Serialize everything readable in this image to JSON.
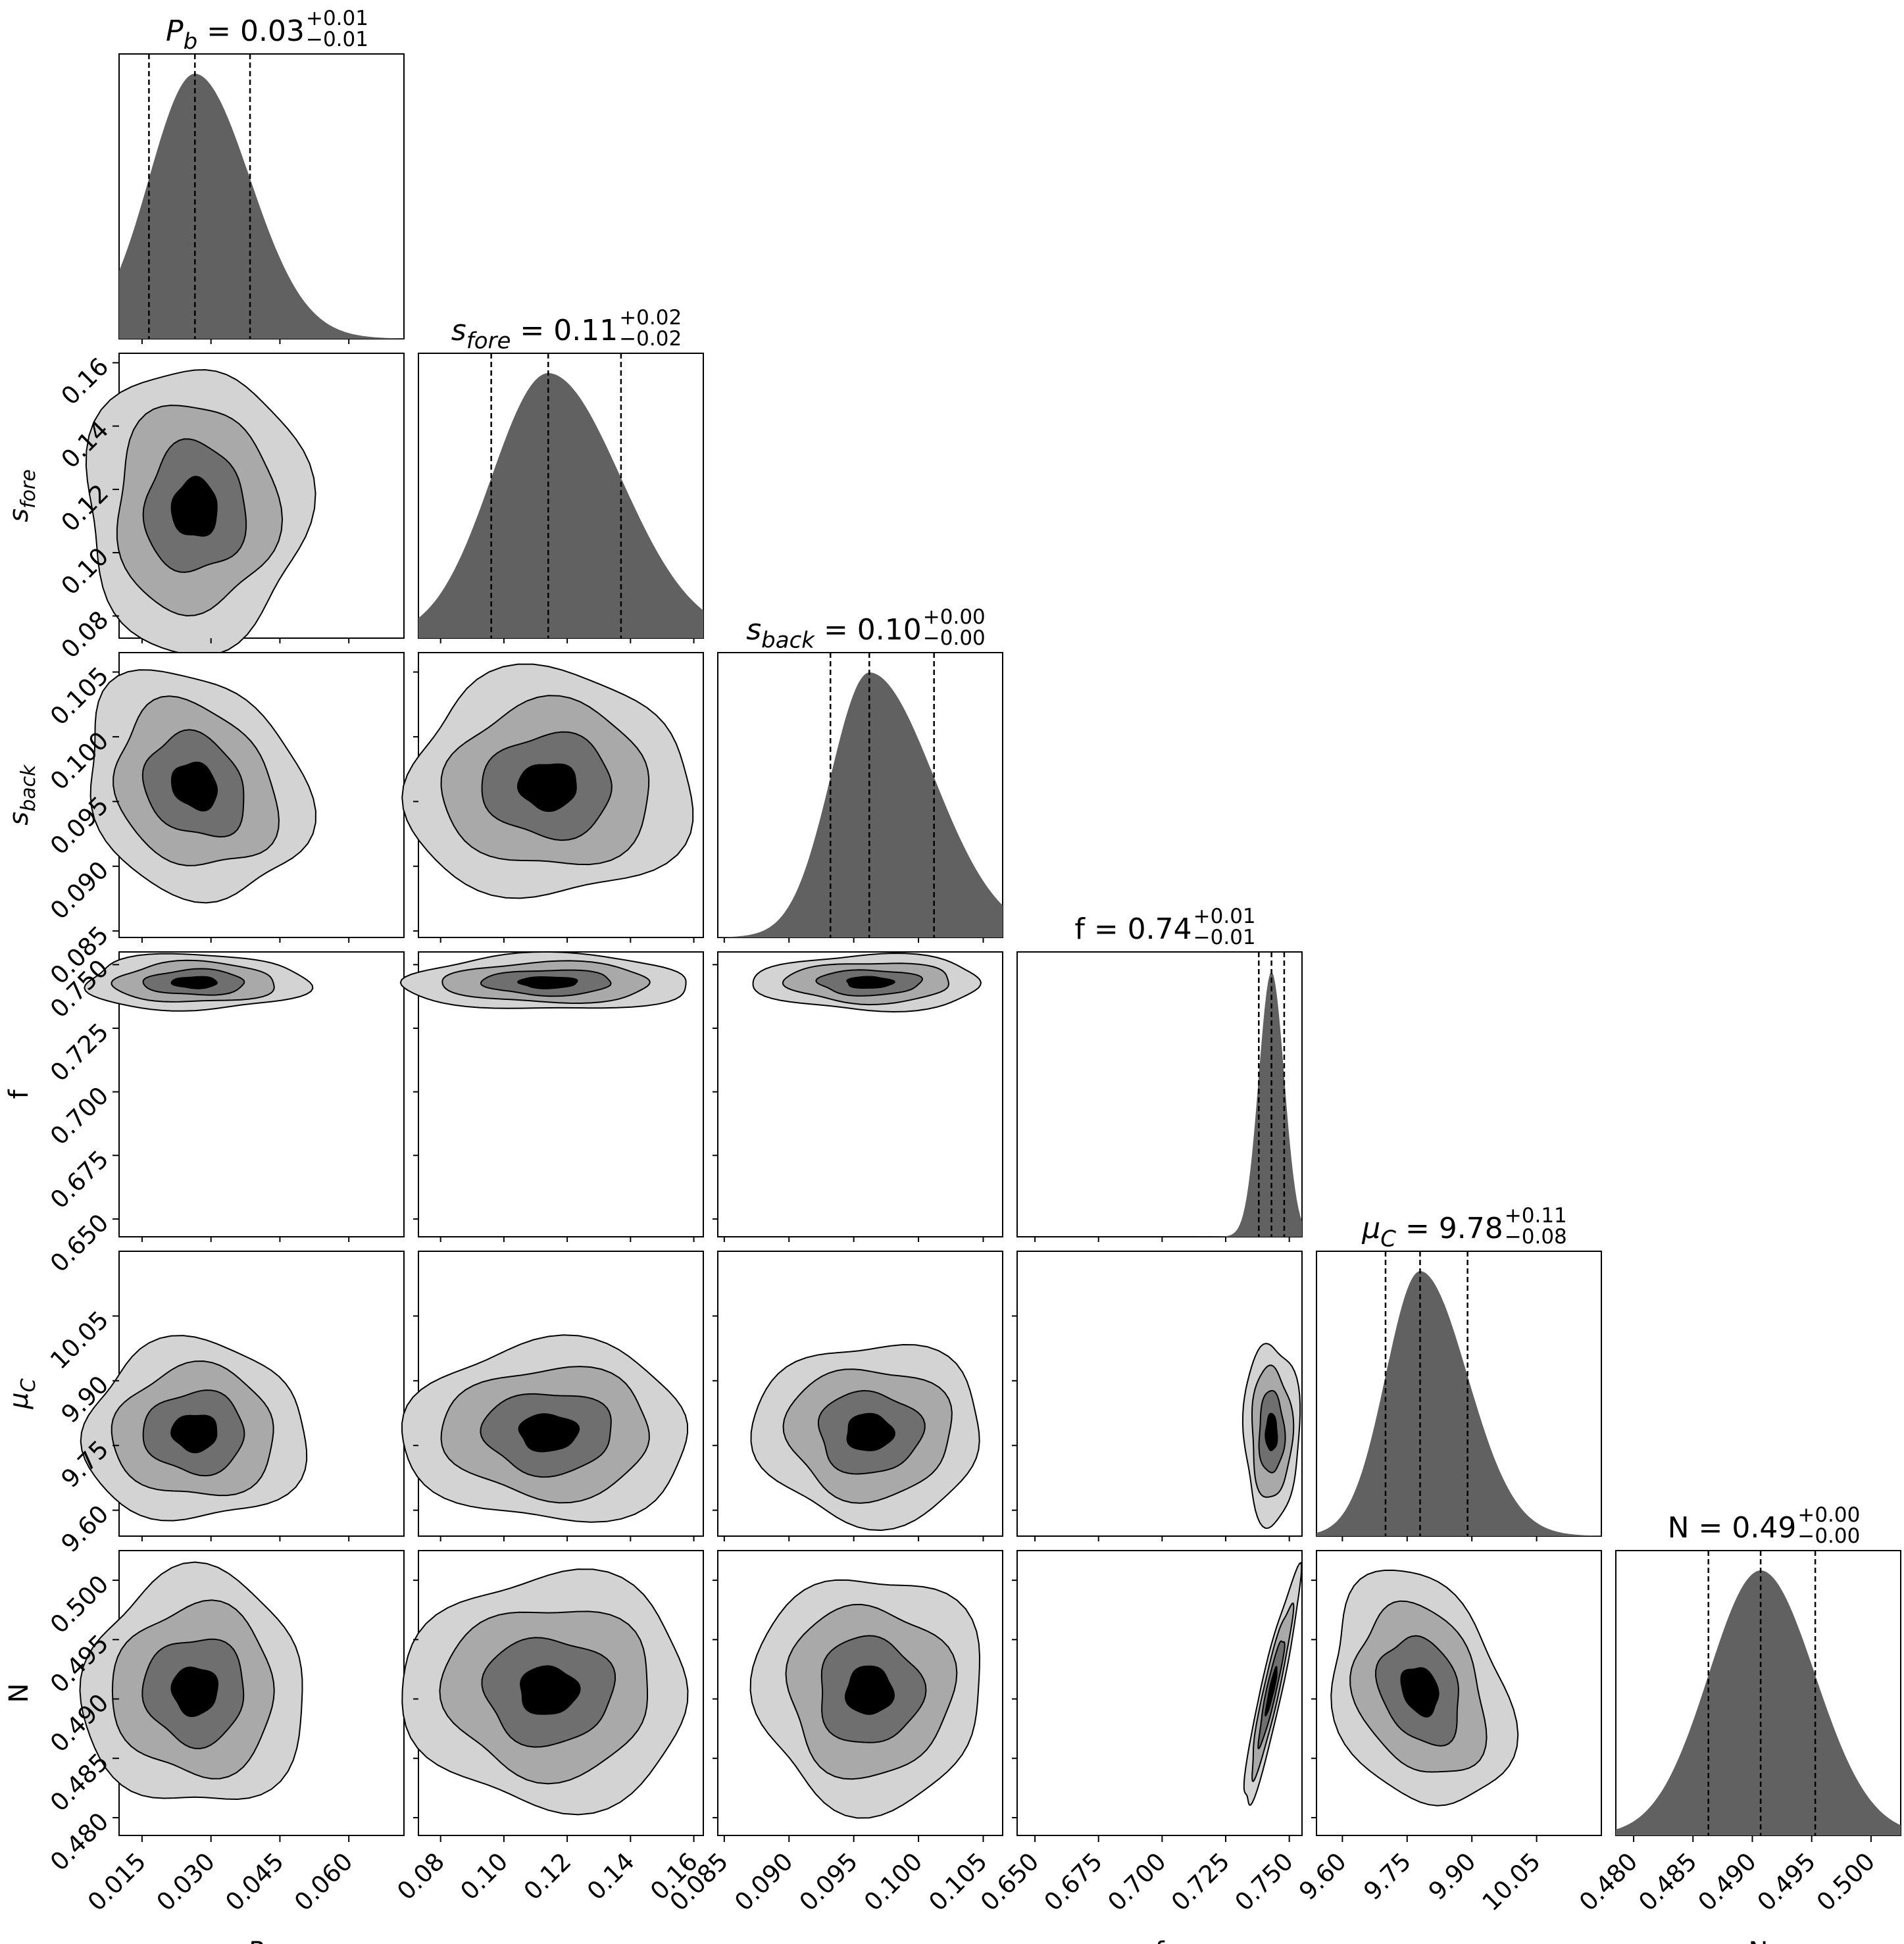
{
  "chart_data": {
    "type": "corner",
    "title": "",
    "grid": false,
    "parameters": [
      {
        "key": "Pb",
        "symbol": "P",
        "sub": "b",
        "median": 0.0265,
        "q16": 0.0165,
        "q84": 0.0385,
        "range": [
          0.01,
          0.072
        ],
        "ticks": [
          "0.015",
          "0.030",
          "0.045",
          "0.060"
        ],
        "title": {
          "value": "0.03",
          "plus": "+0.01",
          "minus": "−0.01"
        },
        "axis_label": "P_b",
        "skew": 1.8
      },
      {
        "key": "sfore",
        "symbol": "s",
        "sub": "fore",
        "median": 0.114,
        "q16": 0.096,
        "q84": 0.137,
        "range": [
          0.073,
          0.163
        ],
        "ticks": [
          "0.08",
          "0.10",
          "0.12",
          "0.14",
          "0.16"
        ],
        "title": {
          "value": "0.11",
          "plus": "+0.02",
          "minus": "−0.02"
        },
        "axis_label": "s_fore",
        "skew": 1.3
      },
      {
        "key": "sback",
        "symbol": "s",
        "sub": "back",
        "median": 0.0962,
        "q16": 0.0932,
        "q84": 0.1012,
        "range": [
          0.0845,
          0.1065
        ],
        "ticks": [
          "0.085",
          "0.090",
          "0.095",
          "0.100",
          "0.105"
        ],
        "title": {
          "value": "0.10",
          "plus": "+0.00",
          "minus": "−0.00"
        },
        "axis_label": "s_back",
        "skew": 1.2
      },
      {
        "key": "f",
        "symbol": "f",
        "sub": "",
        "median": 0.743,
        "q16": 0.738,
        "q84": 0.748,
        "range": [
          0.643,
          0.755
        ],
        "ticks": [
          "0.650",
          "0.675",
          "0.700",
          "0.725",
          "0.750"
        ],
        "title": {
          "value": "0.74",
          "plus": "+0.01",
          "minus": "−0.01"
        },
        "axis_label": "f",
        "skew": 1.0
      },
      {
        "key": "muC",
        "symbol": "μ",
        "sub": "C",
        "median": 9.78,
        "q16": 9.7,
        "q84": 9.89,
        "range": [
          9.54,
          10.2
        ],
        "ticks": [
          "9.60",
          "9.75",
          "9.90",
          "10.05"
        ],
        "title": {
          "value": "9.78",
          "plus": "+0.11",
          "minus": "−0.08"
        },
        "axis_label": "μ_C",
        "skew": 1.4
      },
      {
        "key": "N",
        "symbol": "N",
        "sub": "",
        "median": 0.4907,
        "q16": 0.4863,
        "q84": 0.4953,
        "range": [
          0.4785,
          0.5025
        ],
        "ticks": [
          "0.480",
          "0.485",
          "0.490",
          "0.495",
          "0.500"
        ],
        "title": {
          "value": "0.49",
          "plus": "+0.00",
          "minus": "−0.00"
        },
        "axis_label": "N",
        "skew": 1.0
      }
    ],
    "contour_levels": 4,
    "correlations": {
      "f|N": 0.92,
      "muC|N": -0.25,
      "sback|Pb": -0.2
    },
    "quantile_lines": [
      "q16",
      "median",
      "q84"
    ],
    "colors": {
      "histogram_fill": "#616161",
      "contour_fills": [
        "#d3d3d3",
        "#a9a9a9",
        "#6f6f6f",
        "#000000"
      ],
      "quantile_line": "#000000"
    }
  }
}
